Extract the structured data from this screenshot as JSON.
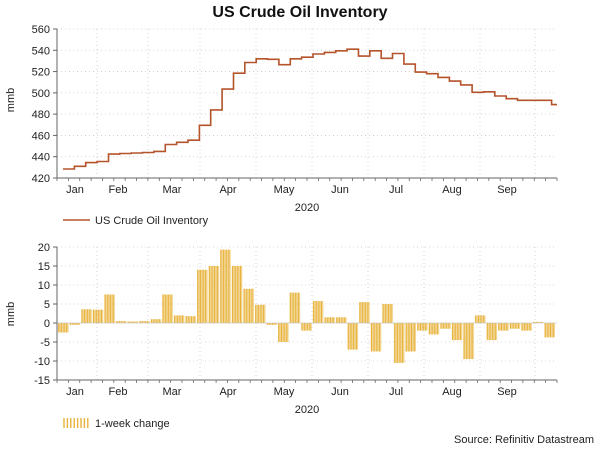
{
  "colors": {
    "line": "#b5532b",
    "bar": "#e8b23a",
    "grid": "#c9c9c9",
    "axis": "#666666"
  },
  "chart_data": [
    {
      "type": "line",
      "title": "US Crude Oil Inventory",
      "ylabel": "mmb",
      "xlabel": "2020",
      "ylim": [
        420,
        560
      ],
      "yticks": [
        420,
        440,
        460,
        480,
        500,
        520,
        540,
        560
      ],
      "months": [
        "Jan",
        "Feb",
        "Mar",
        "Apr",
        "May",
        "Jun",
        "Jul",
        "Aug",
        "Sep"
      ],
      "legend": "US Crude Oil Inventory",
      "series": [
        {
          "name": "US Crude Oil Inventory",
          "values": [
            428.5,
            431,
            434.5,
            435.5,
            442.5,
            443,
            443.5,
            444,
            445,
            451.5,
            453.5,
            455.5,
            469.5,
            484,
            503.5,
            518.5,
            528.5,
            532,
            531.5,
            526.5,
            532,
            533.5,
            536.5,
            538,
            539.5,
            541,
            534.5,
            539.5,
            532.5,
            537,
            527,
            519.5,
            518,
            514.5,
            511,
            507.5,
            500.5,
            501,
            497,
            494.5,
            493,
            493,
            493,
            489
          ]
        }
      ]
    },
    {
      "type": "bar",
      "ylabel": "mmb",
      "xlabel": "2020",
      "ylim": [
        -15,
        20
      ],
      "yticks": [
        -15,
        -10,
        -5,
        0,
        5,
        10,
        15,
        20
      ],
      "months": [
        "Jan",
        "Feb",
        "Mar",
        "Apr",
        "May",
        "Jun",
        "Jul",
        "Aug",
        "Sep"
      ],
      "legend": "1-week change",
      "series": [
        {
          "name": "1-week change",
          "values": [
            -2.5,
            -0.5,
            3.6,
            3.5,
            7.5,
            0.5,
            0.4,
            0.5,
            1.0,
            7.5,
            2.0,
            1.8,
            14.0,
            15.0,
            19.3,
            15.0,
            9.0,
            4.8,
            -0.5,
            -5.0,
            8.0,
            -2.0,
            5.8,
            1.5,
            1.5,
            -7.0,
            5.5,
            -7.5,
            5.0,
            -10.5,
            -7.5,
            -2.0,
            -3.0,
            -1.5,
            -4.5,
            -9.5,
            2.0,
            -4.5,
            -2.0,
            -1.5,
            -2.0,
            0.3,
            -3.8
          ]
        }
      ],
      "source": "Source: Refinitiv Datastream"
    }
  ]
}
